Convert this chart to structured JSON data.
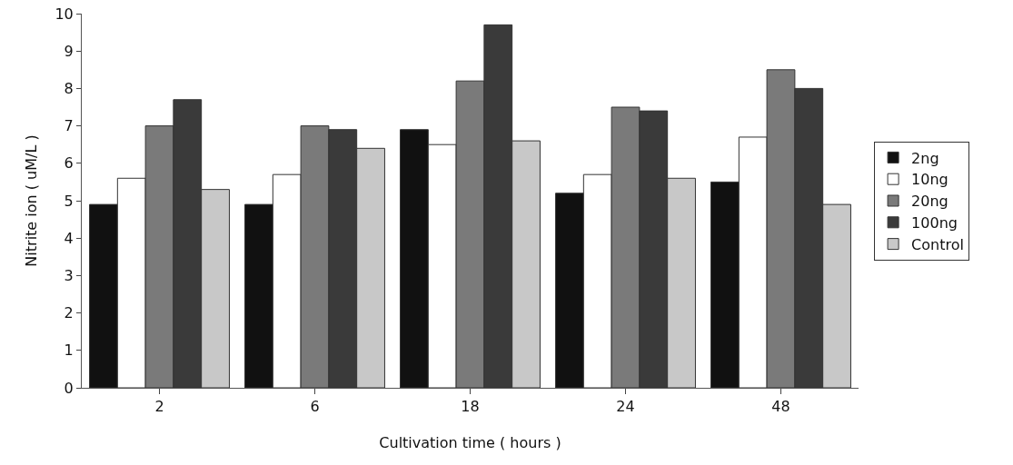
{
  "chart_data": {
    "type": "bar",
    "xlabel": "Cultivation time ( hours )",
    "ylabel": "Nitrite ion ( uM/L )",
    "categories": [
      "2",
      "6",
      "18",
      "24",
      "48"
    ],
    "series": [
      {
        "name": "2ng",
        "color": "#111111",
        "values": [
          4.9,
          4.9,
          6.9,
          5.2,
          5.5
        ]
      },
      {
        "name": "10ng",
        "color": "#ffffff",
        "values": [
          5.6,
          5.7,
          6.5,
          5.7,
          6.7
        ]
      },
      {
        "name": "20ng",
        "color": "#7a7a7a",
        "values": [
          7.0,
          7.0,
          8.2,
          7.5,
          8.5
        ]
      },
      {
        "name": "100ng",
        "color": "#3a3a3a",
        "values": [
          7.7,
          6.9,
          9.7,
          7.4,
          8.0
        ]
      },
      {
        "name": "Control",
        "color": "#c8c8c8",
        "values": [
          5.3,
          6.4,
          6.6,
          5.6,
          4.9
        ]
      }
    ],
    "ylim": [
      0,
      10
    ],
    "yticks": [
      0,
      1,
      2,
      3,
      4,
      5,
      6,
      7,
      8,
      9,
      10
    ],
    "grid": false,
    "legend": "right"
  }
}
